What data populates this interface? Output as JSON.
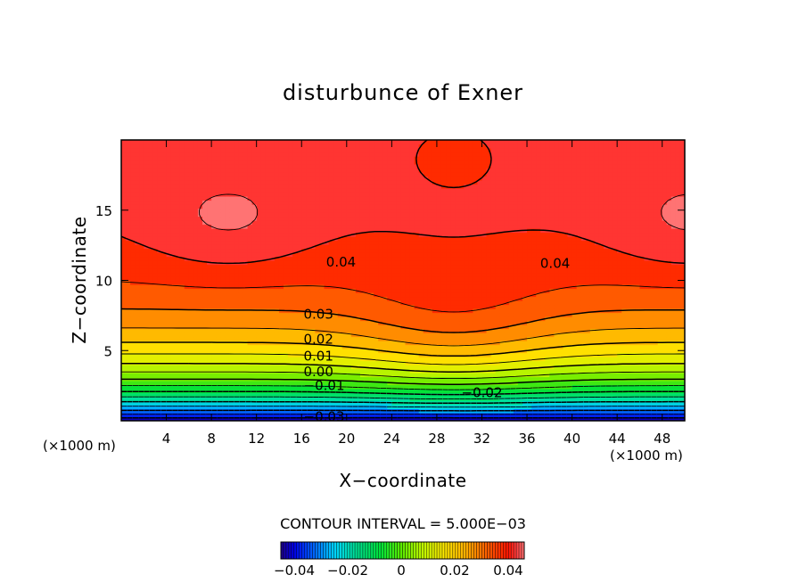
{
  "chart_data": {
    "type": "heatmap",
    "title": "disturbunce of Exner",
    "xlabel": "X−coordinate",
    "ylabel": "Z−coordinate",
    "x_unit": "(×1000 m)",
    "y_unit": "(×1000 m)",
    "xlim": [
      0,
      50
    ],
    "ylim": [
      0,
      20
    ],
    "x_ticks": [
      4,
      8,
      12,
      16,
      20,
      24,
      28,
      32,
      36,
      40,
      44,
      48
    ],
    "y_ticks": [
      5,
      10,
      15
    ],
    "contour_interval_text": "CONTOUR INTERVAL = 5.000E−03",
    "contour_interval": 0.005,
    "value_range": [
      -0.045,
      0.046
    ],
    "contour_labels": [
      {
        "text": "0.04",
        "x": 19.5,
        "y": 11.3
      },
      {
        "text": "0.04",
        "x": 38.5,
        "y": 11.2
      },
      {
        "text": "0.03",
        "x": 17.5,
        "y": 7.6
      },
      {
        "text": "0.02",
        "x": 17.5,
        "y": 5.8
      },
      {
        "text": "0.01",
        "x": 17.5,
        "y": 4.6
      },
      {
        "text": "0.00",
        "x": 17.5,
        "y": 3.5
      },
      {
        "text": "−0.01",
        "x": 18.0,
        "y": 2.5
      },
      {
        "text": "−0.02",
        "x": 32.0,
        "y": 2.0
      },
      {
        "text": "−0.03",
        "x": 18.0,
        "y": 0.3
      }
    ],
    "colorbar": {
      "tick_labels": [
        "−0.04",
        "−0.02",
        "0",
        "0.02",
        "0.04"
      ],
      "tick_values": [
        -0.04,
        -0.02,
        0,
        0.02,
        0.04
      ],
      "range": [
        -0.045,
        0.046
      ]
    }
  }
}
